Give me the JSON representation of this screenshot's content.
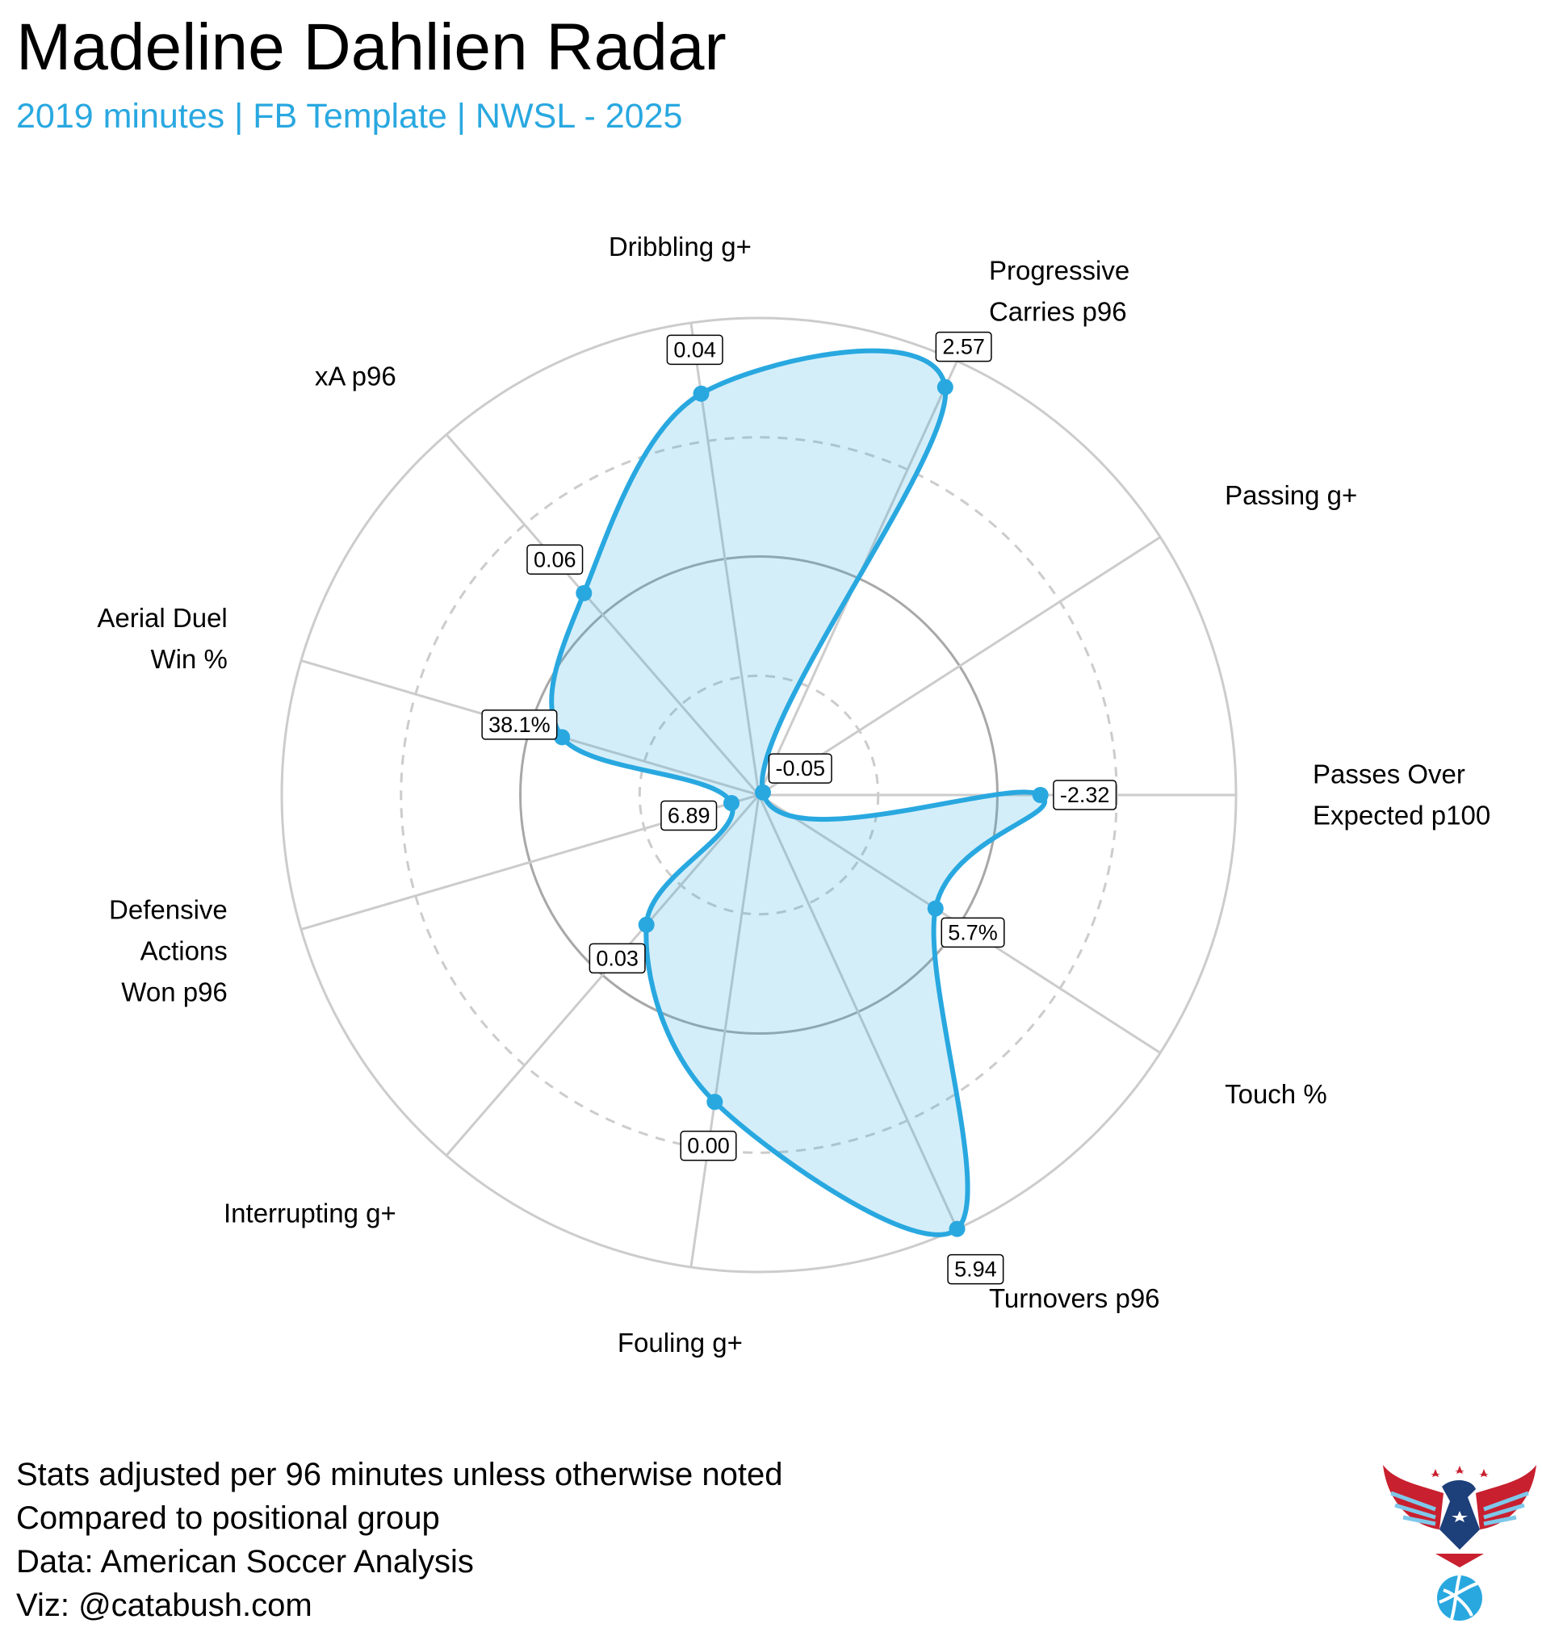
{
  "chart_data": {
    "type": "radar",
    "title": "Madeline Dahlien Radar",
    "subtitle": "2019 minutes | FB Template | NWSL - 2025",
    "categories": [
      "Passes Over\nExpected p100",
      "Passing g+",
      "Progressive\nCarries p96",
      "Dribbling g+",
      "xA p96",
      "Aerial Duel\nWin %",
      "Defensive\nActions\nWon p96",
      "Interrupting g+",
      "Fouling g+",
      "Turnovers p96",
      "Touch %"
    ],
    "values": [
      59,
      1,
      94,
      85,
      56,
      43,
      6,
      36,
      65,
      100,
      44
    ],
    "stat_labels": [
      "-2.32",
      "-0.05",
      "2.57",
      "0.04",
      "0.06",
      "38.1%",
      "6.89",
      "0.03",
      "0.00",
      "5.94",
      "5.7%"
    ],
    "color": "#29a8e0",
    "ylim": [
      0,
      100
    ],
    "yticks": [
      25,
      50,
      75,
      100
    ],
    "notes": [
      "Stats adjusted per 96 minutes unless otherwise noted",
      "Compared to positional group",
      "Data: American Soccer Analysis",
      "Viz: @catabush.com"
    ]
  }
}
